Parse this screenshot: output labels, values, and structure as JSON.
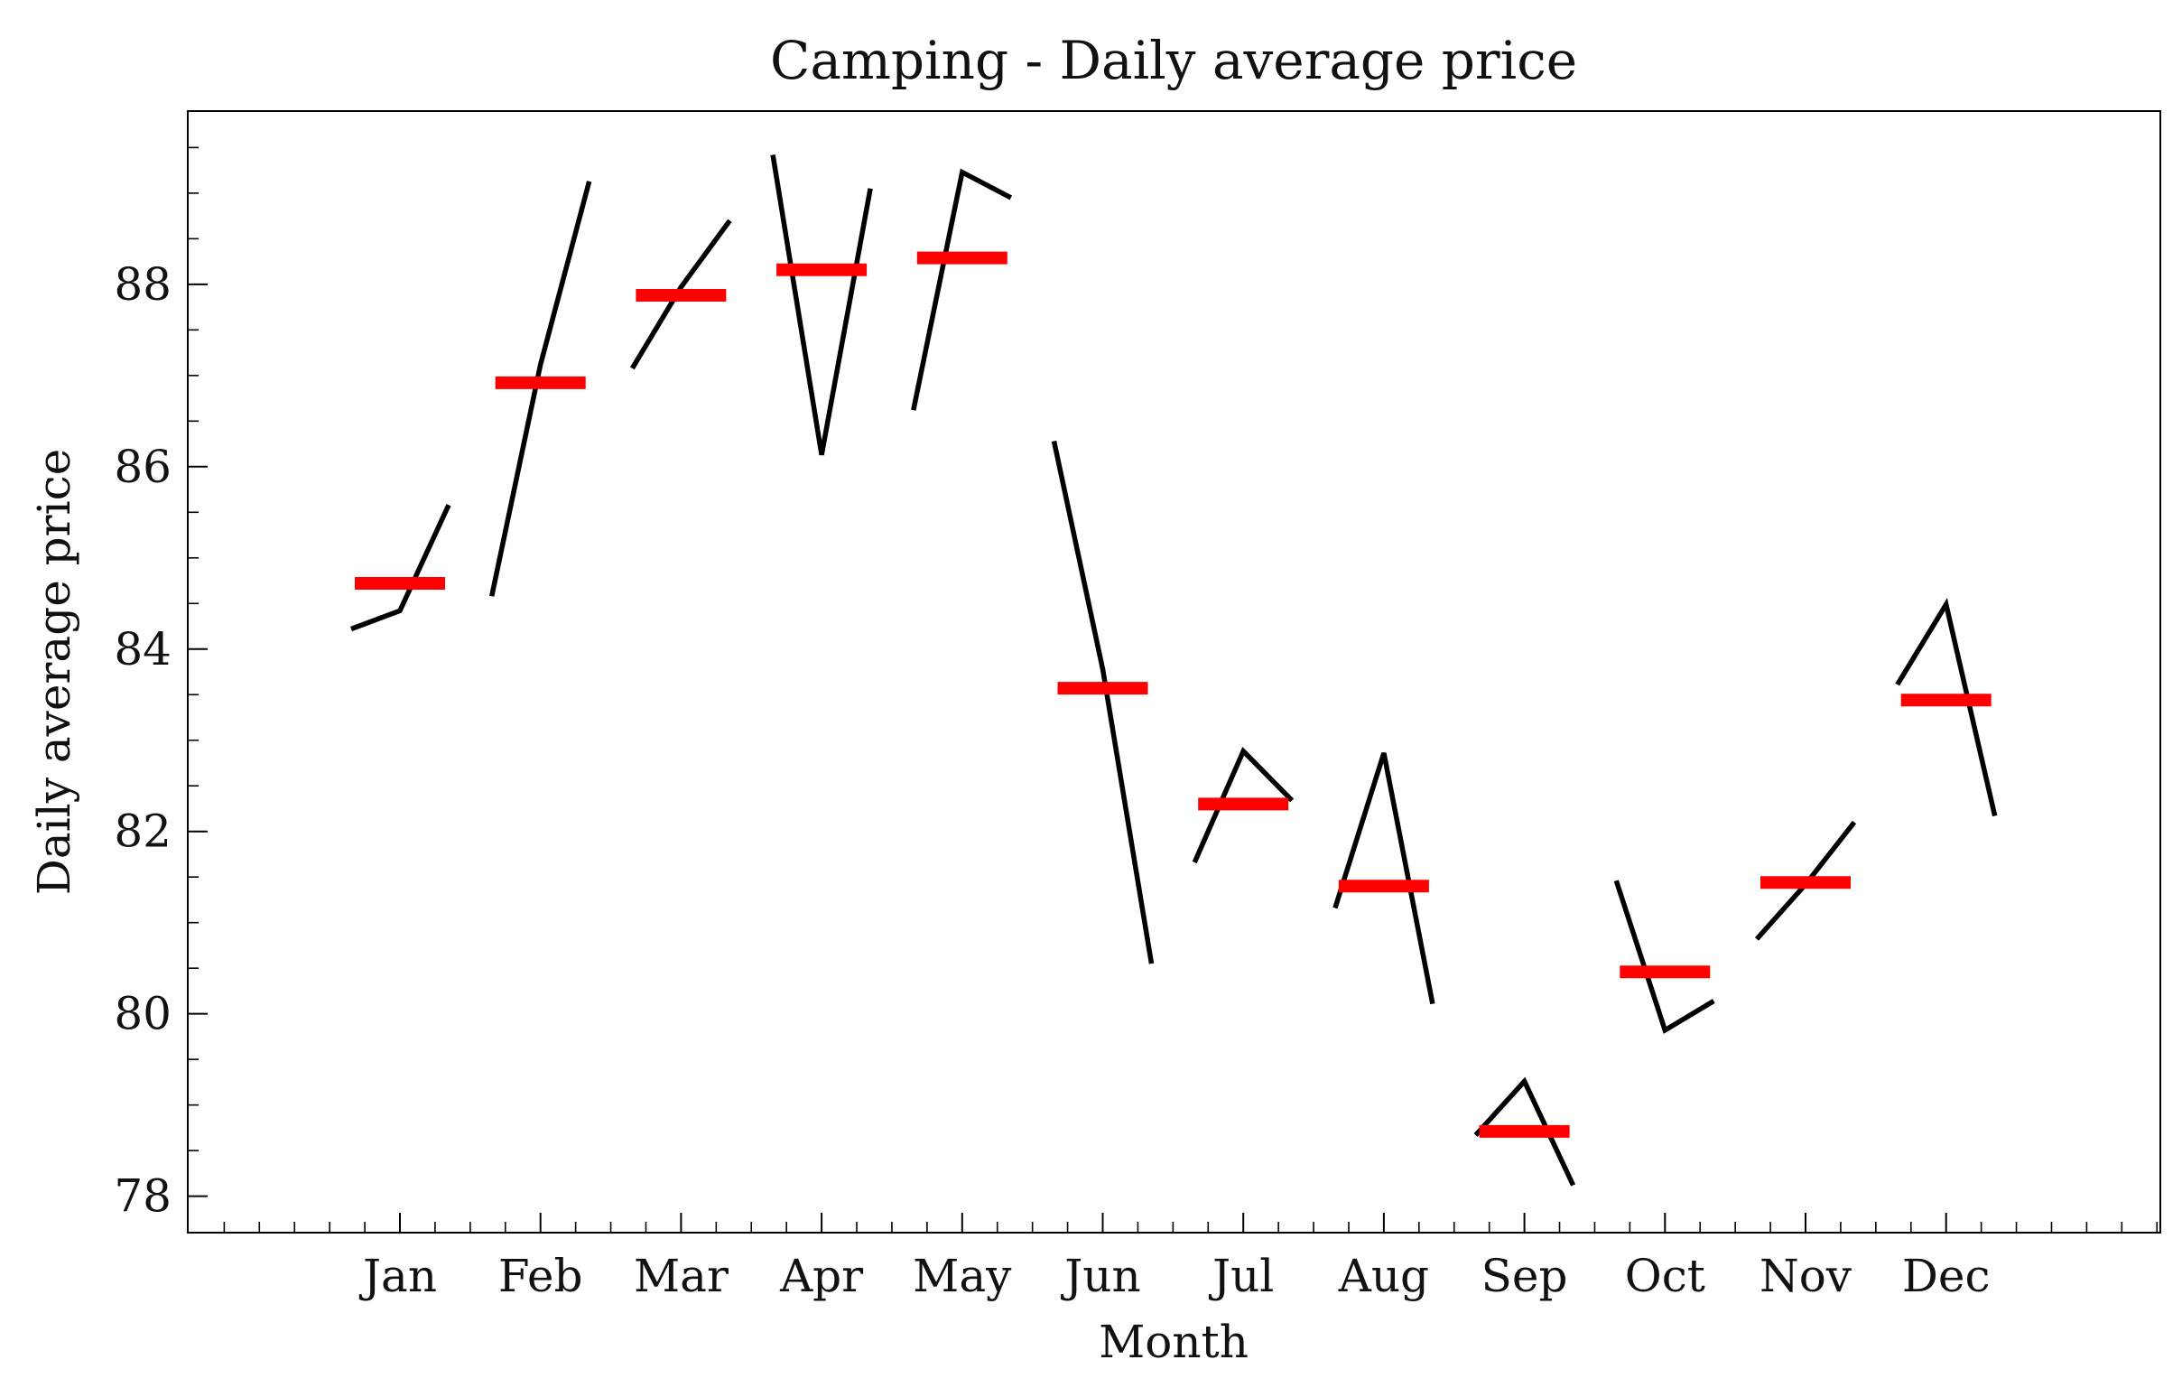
{
  "chart_data": {
    "type": "line",
    "title": "Camping - Daily average price",
    "xlabel": "Month",
    "ylabel": "Daily average price",
    "categories": [
      "Jan",
      "Feb",
      "Mar",
      "Apr",
      "May",
      "Jun",
      "Jul",
      "Aug",
      "Sep",
      "Oct",
      "Nov",
      "Dec"
    ],
    "yticks": [
      78,
      80,
      82,
      84,
      86,
      88
    ],
    "ylim": [
      77.6,
      89.9
    ],
    "grid": false,
    "series": [
      {
        "values": [
          [
            84.22,
            84.42,
            85.58
          ],
          [
            84.58,
            87.12,
            89.13
          ],
          [
            87.08,
            87.97,
            88.7
          ],
          [
            89.42,
            86.13,
            89.05
          ],
          [
            86.62,
            89.23,
            88.95
          ],
          [
            86.28,
            83.78,
            80.55
          ],
          [
            81.66,
            82.88,
            82.34
          ],
          [
            81.16,
            82.86,
            80.11
          ],
          [
            78.67,
            79.26,
            78.12
          ],
          [
            81.46,
            79.82,
            80.14
          ],
          [
            80.82,
            81.42,
            82.1
          ],
          [
            83.61,
            84.49,
            82.17
          ]
        ],
        "color": "#000000"
      },
      {
        "values": [
          84.72,
          86.92,
          87.88,
          88.16,
          88.29,
          83.57,
          82.3,
          81.4,
          78.71,
          80.46,
          81.44,
          83.44
        ],
        "color": "#ff0000"
      }
    ]
  }
}
